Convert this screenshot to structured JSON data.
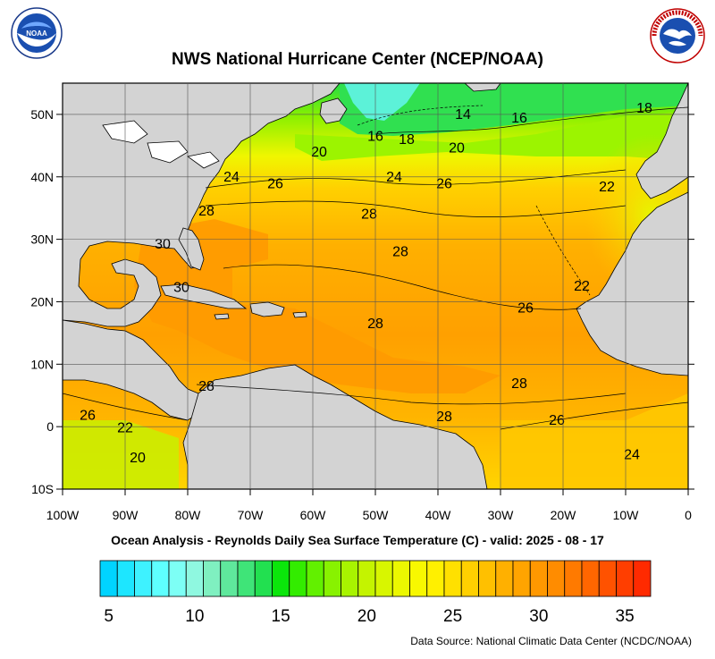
{
  "title": "NWS National Hurricane Center (NCEP/NOAA)",
  "subtitle": "Ocean Analysis - Reynolds Daily Sea Surface Temperature (C) - valid: 2025 - 08 - 17",
  "source": "Data Source: National Climatic Data Center (NCDC/NOAA)",
  "logos": {
    "noaa": {
      "text": "NOAA",
      "ring_text": "NATIONAL OCEANIC AND ATMOSPHERIC ADMINISTRATION · U.S. DEPARTMENT OF COMMERCE"
    },
    "nws": {
      "ring_text": "NATIONAL WEATHER SERVICE"
    }
  },
  "map": {
    "lon_range": [
      -100,
      0
    ],
    "lat_range": [
      -10,
      55
    ],
    "lon_ticks": [
      {
        "v": -100,
        "label": "100W"
      },
      {
        "v": -90,
        "label": "90W"
      },
      {
        "v": -80,
        "label": "80W"
      },
      {
        "v": -70,
        "label": "70W"
      },
      {
        "v": -60,
        "label": "60W"
      },
      {
        "v": -50,
        "label": "50W"
      },
      {
        "v": -40,
        "label": "40W"
      },
      {
        "v": -30,
        "label": "30W"
      },
      {
        "v": -20,
        "label": "20W"
      },
      {
        "v": -10,
        "label": "10W"
      },
      {
        "v": 0,
        "label": "0"
      }
    ],
    "lat_ticks": [
      {
        "v": 50,
        "label": "50N"
      },
      {
        "v": 40,
        "label": "40N"
      },
      {
        "v": 30,
        "label": "30N"
      },
      {
        "v": 20,
        "label": "20N"
      },
      {
        "v": 10,
        "label": "10N"
      },
      {
        "v": 0,
        "label": "0"
      },
      {
        "v": -10,
        "label": "10S"
      }
    ],
    "grid": true,
    "land_color": "#d3d3d3",
    "contour_labels": [
      {
        "text": "14",
        "lon": -36,
        "lat": 50
      },
      {
        "text": "16",
        "lon": -27,
        "lat": 49.4
      },
      {
        "text": "18",
        "lon": -7,
        "lat": 51
      },
      {
        "text": "16",
        "lon": -50,
        "lat": 46.5
      },
      {
        "text": "18",
        "lon": -45,
        "lat": 46
      },
      {
        "text": "20",
        "lon": -37,
        "lat": 44.6
      },
      {
        "text": "20",
        "lon": -59,
        "lat": 44
      },
      {
        "text": "24",
        "lon": -73,
        "lat": 40
      },
      {
        "text": "24",
        "lon": -47,
        "lat": 40
      },
      {
        "text": "26",
        "lon": -66,
        "lat": 38.9
      },
      {
        "text": "26",
        "lon": -39,
        "lat": 38.9
      },
      {
        "text": "22",
        "lon": -13,
        "lat": 38.4
      },
      {
        "text": "28",
        "lon": -77,
        "lat": 34.5
      },
      {
        "text": "28",
        "lon": -51,
        "lat": 34
      },
      {
        "text": "30",
        "lon": -84,
        "lat": 29.2
      },
      {
        "text": "28",
        "lon": -46,
        "lat": 28
      },
      {
        "text": "30",
        "lon": -81,
        "lat": 22.3
      },
      {
        "text": "22",
        "lon": -17,
        "lat": 22.5
      },
      {
        "text": "26",
        "lon": -26,
        "lat": 19
      },
      {
        "text": "28",
        "lon": -50,
        "lat": 16.5
      },
      {
        "text": "28",
        "lon": -77,
        "lat": 6.5
      },
      {
        "text": "28",
        "lon": -27,
        "lat": 6.9
      },
      {
        "text": "26",
        "lon": -96,
        "lat": 1.8
      },
      {
        "text": "28",
        "lon": -39,
        "lat": 1.6
      },
      {
        "text": "26",
        "lon": -21,
        "lat": 1
      },
      {
        "text": "22",
        "lon": -90,
        "lat": -0.2
      },
      {
        "text": "20",
        "lon": -88,
        "lat": -5
      },
      {
        "text": "24",
        "lon": -9,
        "lat": -4.5
      }
    ]
  },
  "colorbar": {
    "min": 4,
    "max": 36,
    "step": 1,
    "tick_labels": [
      {
        "v": 5,
        "label": "5"
      },
      {
        "v": 10,
        "label": "10"
      },
      {
        "v": 15,
        "label": "15"
      },
      {
        "v": 20,
        "label": "20"
      },
      {
        "v": 25,
        "label": "25"
      },
      {
        "v": 30,
        "label": "30"
      },
      {
        "v": 35,
        "label": "35"
      }
    ],
    "colors": [
      "#00d4ff",
      "#1de6ff",
      "#3ef2ff",
      "#5effff",
      "#7dfff5",
      "#8ff8e0",
      "#7ff0c0",
      "#5fe89c",
      "#3fe478",
      "#22e050",
      "#0be60b",
      "#33ec00",
      "#62f000",
      "#88f200",
      "#a8f400",
      "#c4f400",
      "#d8f600",
      "#ecf800",
      "#f8f800",
      "#fff000",
      "#ffe000",
      "#ffd000",
      "#ffc000",
      "#ffb000",
      "#ffa400",
      "#ff9800",
      "#ff8c00",
      "#ff7a00",
      "#ff6600",
      "#ff5200",
      "#ff3e00",
      "#ff2a00"
    ]
  }
}
